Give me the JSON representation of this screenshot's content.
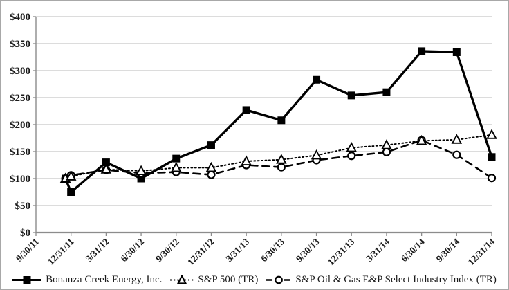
{
  "chart_data": {
    "type": "line",
    "title": "",
    "xlabel": "",
    "ylabel": "",
    "ylim": [
      0,
      400
    ],
    "y_tick_step": 50,
    "grid": "horizontal",
    "legend_position": "bottom",
    "y_tick_labels": [
      "$0",
      "$50",
      "$100",
      "$150",
      "$200",
      "$250",
      "$300",
      "$350",
      "$400"
    ],
    "x_tick_labels": [
      "9/30/11",
      "12/31/11",
      "3/31/12",
      "6/30/12",
      "9/30/12",
      "12/31/12",
      "3/31/13",
      "6/30/13",
      "9/30/13",
      "12/31/13",
      "3/31/14",
      "6/30/14",
      "9/30/14",
      "12/31/14"
    ],
    "x_positions": [
      0.84,
      1,
      2,
      3,
      4,
      5,
      6,
      7,
      8,
      9,
      10,
      11,
      12,
      13
    ],
    "series": [
      {
        "name": "Bonanza Creek Energy, Inc.",
        "line": "solid",
        "marker": "filled-square",
        "color": "#000000",
        "values": [
          100,
          75,
          130,
          100,
          137,
          162,
          227,
          208,
          283,
          254,
          260,
          336,
          334,
          140
        ]
      },
      {
        "name": "S&P 500 (TR)",
        "line": "dotted",
        "marker": "open-triangle",
        "color": "#000000",
        "values": [
          100,
          104,
          117,
          114,
          120,
          120,
          132,
          135,
          143,
          157,
          162,
          170,
          172,
          181
        ]
      },
      {
        "name": "S&P Oil & Gas E&P Select Industry Index (TR)",
        "line": "dashed",
        "marker": "open-circle",
        "color": "#000000",
        "values": [
          100,
          106,
          116,
          110,
          112,
          107,
          125,
          121,
          134,
          142,
          149,
          171,
          144,
          101
        ]
      }
    ],
    "colors": {
      "series": "#000000",
      "gridline": "#c6c6c6",
      "axis": "#8c8c8c",
      "text": "#1a1a1a",
      "background": "#ffffff",
      "border": "#a8a8a8"
    }
  }
}
